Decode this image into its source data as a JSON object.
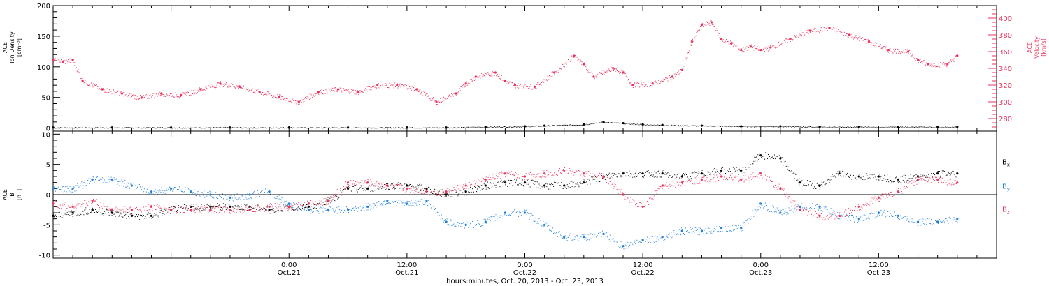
{
  "colors": {
    "density": "#000000",
    "velocity": "#e8325a",
    "bx": "#000000",
    "by": "#1f7fd8",
    "bz": "#e8325a",
    "axis": "#000000"
  },
  "chart_data": [
    {
      "type": "scatter",
      "panel": "top",
      "left_axis_label": [
        "ACE",
        "Ion Density",
        "[cm⁻³]"
      ],
      "right_axis_label": [
        "ACE",
        "Velocity",
        "[km/s]"
      ],
      "ylim_left": [
        -5,
        200
      ],
      "ylim_right": [
        265,
        415
      ],
      "left_ticks": [
        "200",
        "150",
        "100",
        "50",
        "0"
      ],
      "right_ticks": [
        "400",
        "380",
        "360",
        "340",
        "320",
        "300",
        "280"
      ],
      "x_unit": "hours since Oct. 20, 2013 00:00",
      "xlim": [
        0,
        96
      ],
      "series": [
        {
          "name": "",
          "axis": "left",
          "color_key": "density",
          "x": [
            0,
            6,
            12,
            18,
            24,
            30,
            36,
            40,
            44,
            48,
            50,
            54,
            56,
            58,
            60,
            62,
            66,
            70,
            74,
            78,
            82,
            86,
            90,
            92
          ],
          "y": [
            1,
            1,
            1,
            1,
            1,
            1,
            1,
            1,
            2,
            3,
            4,
            6,
            10,
            8,
            6,
            5,
            4,
            3,
            3,
            2,
            2,
            2,
            2,
            2
          ]
        },
        {
          "name": "",
          "axis": "right",
          "color_key": "velocity",
          "x": [
            0,
            1,
            2,
            3,
            5,
            7,
            9,
            11,
            13,
            15,
            17,
            19,
            21,
            23,
            25,
            27,
            29,
            31,
            33,
            35,
            37,
            39,
            41,
            42,
            43,
            45,
            46,
            47,
            49,
            51,
            53,
            54,
            55,
            57,
            58,
            59,
            61,
            63,
            64,
            65,
            66,
            67,
            68,
            69,
            70,
            71,
            72,
            73,
            75,
            77,
            79,
            81,
            83,
            85,
            87,
            88,
            89,
            91,
            92
          ],
          "y": [
            350,
            348,
            350,
            325,
            315,
            310,
            305,
            310,
            308,
            315,
            322,
            318,
            312,
            306,
            300,
            312,
            315,
            312,
            320,
            320,
            315,
            300,
            310,
            322,
            330,
            335,
            325,
            320,
            318,
            335,
            355,
            345,
            330,
            340,
            335,
            320,
            322,
            330,
            338,
            372,
            392,
            395,
            375,
            370,
            362,
            366,
            362,
            365,
            375,
            385,
            388,
            380,
            372,
            362,
            360,
            350,
            345,
            345,
            355
          ]
        }
      ]
    },
    {
      "type": "scatter",
      "panel": "bottom",
      "left_axis_label": [
        "ACE",
        "B",
        "[nT]"
      ],
      "ylim": [
        -10.5,
        10.5
      ],
      "left_ticks": [
        "10",
        "5",
        "0",
        "-5",
        "-10"
      ],
      "x_tick_labels": [
        {
          "time": "0:00",
          "date": "Oct.21",
          "x": 24
        },
        {
          "time": "12:00",
          "date": "Oct.21",
          "x": 36
        },
        {
          "time": "0:00",
          "date": "Oct.22",
          "x": 48
        },
        {
          "time": "12:00",
          "date": "Oct.22",
          "x": 60
        },
        {
          "time": "0:00",
          "date": "Oct.23",
          "x": 72
        },
        {
          "time": "12:00",
          "date": "Oct.23",
          "x": 84
        }
      ],
      "xlabel": "hours:minutes, Oct. 20, 2013 - Oct. 23, 2013",
      "xlim": [
        0,
        96
      ],
      "series": [
        {
          "name": "Bx",
          "color_key": "bx",
          "x": [
            0,
            2,
            4,
            6,
            8,
            10,
            12,
            14,
            16,
            18,
            20,
            22,
            24,
            26,
            28,
            30,
            32,
            34,
            36,
            38,
            40,
            42,
            44,
            46,
            48,
            50,
            52,
            54,
            56,
            58,
            60,
            62,
            64,
            66,
            68,
            70,
            72,
            74,
            76,
            78,
            80,
            82,
            84,
            86,
            88,
            90,
            92
          ],
          "y": [
            -3.5,
            -3.0,
            -2.5,
            -3.0,
            -3.5,
            -3.5,
            -2.5,
            -2.0,
            -2.0,
            -2.0,
            -2.0,
            -2.5,
            -2.0,
            -2.0,
            -1.0,
            1.0,
            1.0,
            1.5,
            1.5,
            1.0,
            0.0,
            0.5,
            1.5,
            2.0,
            2.0,
            1.5,
            1.5,
            2.0,
            3.0,
            3.5,
            3.5,
            3.5,
            3.0,
            3.5,
            4.0,
            4.0,
            6.5,
            6.0,
            2.0,
            1.5,
            3.5,
            3.0,
            3.0,
            2.5,
            3.0,
            3.5,
            3.5
          ]
        },
        {
          "name": "By",
          "color_key": "by",
          "x": [
            0,
            2,
            4,
            6,
            8,
            10,
            12,
            14,
            16,
            18,
            20,
            22,
            24,
            26,
            28,
            30,
            32,
            34,
            36,
            38,
            40,
            42,
            44,
            46,
            48,
            50,
            52,
            54,
            56,
            58,
            60,
            62,
            64,
            66,
            68,
            70,
            72,
            74,
            76,
            78,
            80,
            82,
            84,
            86,
            88,
            90,
            92
          ],
          "y": [
            1.0,
            1.0,
            2.5,
            2.5,
            1.5,
            0.5,
            1.0,
            0.5,
            0.0,
            -0.5,
            0.0,
            0.5,
            -1.5,
            -2.5,
            -2.5,
            -2.5,
            -2.0,
            -1.0,
            -1.5,
            -1.0,
            -4.5,
            -5.0,
            -4.5,
            -3.0,
            -3.0,
            -5.0,
            -7.0,
            -7.0,
            -6.5,
            -8.5,
            -7.5,
            -7.0,
            -6.0,
            -6.0,
            -5.5,
            -5.5,
            -1.5,
            -3.0,
            -2.0,
            -2.0,
            -3.5,
            -4.0,
            -3.0,
            -3.5,
            -4.5,
            -4.5,
            -4.0
          ]
        },
        {
          "name": "Bz",
          "color_key": "bz",
          "x": [
            0,
            2,
            4,
            6,
            8,
            10,
            12,
            14,
            16,
            18,
            20,
            22,
            24,
            26,
            28,
            30,
            32,
            34,
            36,
            38,
            40,
            42,
            44,
            46,
            48,
            50,
            52,
            54,
            56,
            58,
            60,
            62,
            64,
            66,
            68,
            70,
            72,
            74,
            76,
            78,
            80,
            82,
            84,
            86,
            88,
            90,
            92
          ],
          "y": [
            -1.5,
            -2.0,
            -1.0,
            -2.5,
            -2.5,
            -2.0,
            -2.5,
            -2.5,
            -2.5,
            -2.5,
            -2.5,
            -2.0,
            -2.0,
            -1.5,
            -1.0,
            2.0,
            2.0,
            1.5,
            1.0,
            0.5,
            0.5,
            1.5,
            2.5,
            3.5,
            3.0,
            3.5,
            4.0,
            3.5,
            3.0,
            0.0,
            -2.0,
            1.5,
            2.0,
            2.5,
            3.0,
            2.5,
            3.5,
            1.0,
            -2.5,
            -3.5,
            -3.5,
            -2.0,
            -0.5,
            0.5,
            2.5,
            2.5,
            2.0
          ]
        }
      ]
    }
  ],
  "legend": [
    {
      "base": "B",
      "sub": "x",
      "color_key": "bx"
    },
    {
      "base": "B",
      "sub": "y",
      "color_key": "by"
    },
    {
      "base": "B",
      "sub": "z",
      "color_key": "bz"
    }
  ]
}
